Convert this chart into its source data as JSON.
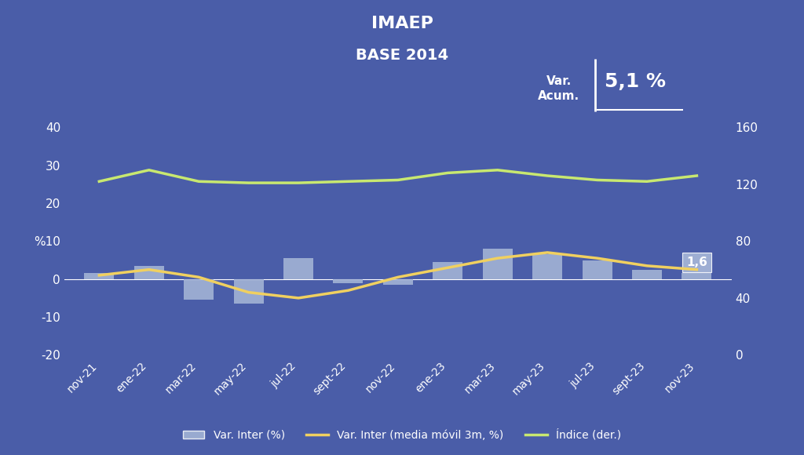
{
  "title1": "IMAEP",
  "title2": "BASE 2014",
  "bg_color": "#4a5da8",
  "categories": [
    "nov-21",
    "ene-22",
    "mar-22",
    "may-22",
    "jul-22",
    "sept-22",
    "nov-22",
    "ene-23",
    "mar-23",
    "may-23",
    "jul-23",
    "sept-23",
    "nov-23"
  ],
  "bar_values": [
    1.5,
    3.5,
    -5.5,
    -6.5,
    5.5,
    -1.0,
    -1.5,
    4.5,
    8.0,
    6.5,
    5.0,
    2.5,
    1.6
  ],
  "moving_avg": [
    1.0,
    2.5,
    0.5,
    -3.5,
    -5.0,
    -3.0,
    0.5,
    3.0,
    5.5,
    7.0,
    5.5,
    3.5,
    2.5
  ],
  "index_values": [
    122,
    130,
    122,
    121,
    121,
    122,
    123,
    128,
    130,
    126,
    123,
    122,
    126
  ],
  "bar_color": "#a8b8d8",
  "moving_avg_color": "#f0d060",
  "index_color": "#c8e870",
  "text_color": "#ffffff",
  "ylim_left": [
    -20,
    40
  ],
  "ylim_right": [
    0,
    160
  ],
  "var_acum_label": "Var.\nAcum.",
  "var_acum_value": "5,1 %",
  "annotation_value": "1,6",
  "legend_bar": "Var. Inter (%)",
  "legend_mavg": "Var. Inter (media móvil 3m, %)",
  "legend_index": "Índice (der.)"
}
